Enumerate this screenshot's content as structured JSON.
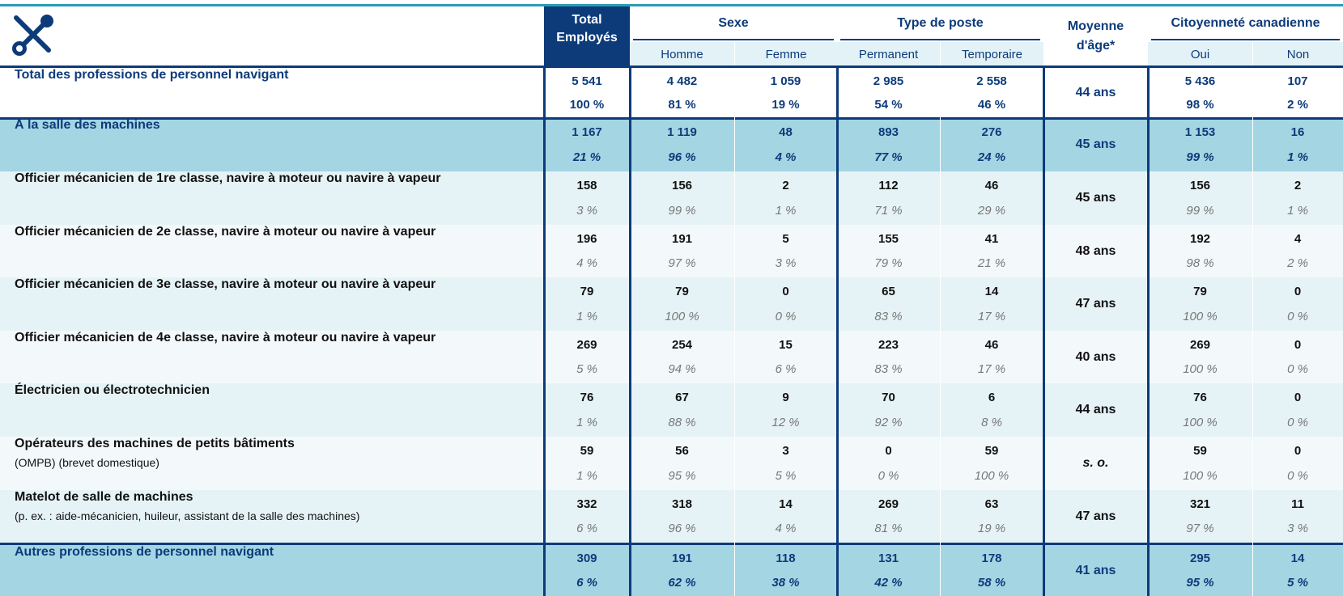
{
  "header": {
    "total": "Total Employés",
    "groups": [
      {
        "title": "Sexe",
        "subs": [
          "Homme",
          "Femme"
        ]
      },
      {
        "title": "Type de poste",
        "subs": [
          "Permanent",
          "Temporaire"
        ]
      },
      {
        "title": "Citoyenneté canadienne",
        "subs": [
          "Oui",
          "Non"
        ]
      }
    ],
    "age": "Moyenne d'âge*"
  },
  "table": {
    "rows": [
      {
        "style": "total",
        "label": "Total des professions de personnel navigant",
        "counts": [
          "5 541",
          "4 482",
          "1 059",
          "2 985",
          "2 558",
          "5 436",
          "107"
        ],
        "pcts": [
          "100 %",
          "81 %",
          "19 %",
          "54 %",
          "46 %",
          "98 %",
          "2 %"
        ],
        "age": "44 ans"
      },
      {
        "style": "section",
        "label": "À la salle des machines",
        "counts": [
          "1 167",
          "1 119",
          "48",
          "893",
          "276",
          "1 153",
          "16"
        ],
        "pcts": [
          "21 %",
          "96 %",
          "4 %",
          "77 %",
          "24 %",
          "99 %",
          "1 %"
        ],
        "age": "45 ans"
      },
      {
        "style": "detail",
        "label": "Officier mécanicien de 1re classe, navire à moteur ou navire à vapeur",
        "counts": [
          "158",
          "156",
          "2",
          "112",
          "46",
          "156",
          "2"
        ],
        "pcts": [
          "3 %",
          "99 %",
          "1 %",
          "71 %",
          "29 %",
          "99 %",
          "1 %"
        ],
        "age": "45 ans"
      },
      {
        "style": "detail",
        "label": "Officier mécanicien de 2e classe, navire à moteur ou navire à vapeur",
        "counts": [
          "196",
          "191",
          "5",
          "155",
          "41",
          "192",
          "4"
        ],
        "pcts": [
          "4 %",
          "97 %",
          "3 %",
          "79 %",
          "21 %",
          "98 %",
          "2 %"
        ],
        "age": "48 ans"
      },
      {
        "style": "detail",
        "label": "Officier mécanicien de 3e classe, navire à moteur ou navire à vapeur",
        "counts": [
          "79",
          "79",
          "0",
          "65",
          "14",
          "79",
          "0"
        ],
        "pcts": [
          "1 %",
          "100 %",
          "0 %",
          "83 %",
          "17 %",
          "100 %",
          "0 %"
        ],
        "age": "47 ans"
      },
      {
        "style": "detail",
        "label": "Officier mécanicien de 4e classe, navire à moteur ou navire à vapeur",
        "counts": [
          "269",
          "254",
          "15",
          "223",
          "46",
          "269",
          "0"
        ],
        "pcts": [
          "5 %",
          "94 %",
          "6 %",
          "83 %",
          "17 %",
          "100 %",
          "0 %"
        ],
        "age": "40 ans"
      },
      {
        "style": "detail",
        "label": "Électricien ou électrotechnicien",
        "counts": [
          "76",
          "67",
          "9",
          "70",
          "6",
          "76",
          "0"
        ],
        "pcts": [
          "1 %",
          "88 %",
          "12 %",
          "92 %",
          "8 %",
          "100 %",
          "0 %"
        ],
        "age": "44 ans"
      },
      {
        "style": "detail",
        "label": "Opérateurs des machines de petits bâtiments",
        "sublabel": "(OMPB) (brevet domestique)",
        "counts": [
          "59",
          "56",
          "3",
          "0",
          "59",
          "59",
          "0"
        ],
        "pcts": [
          "1 %",
          "95 %",
          "5 %",
          "0 %",
          "100 %",
          "100 %",
          "0 %"
        ],
        "age": "s. o."
      },
      {
        "style": "detail",
        "label": "Matelot de salle de machines",
        "sublabel": "(p. ex. : aide-mécanicien, huileur, assistant de la salle des machines)",
        "counts": [
          "332",
          "318",
          "14",
          "269",
          "63",
          "321",
          "11"
        ],
        "pcts": [
          "6 %",
          "96 %",
          "4 %",
          "81 %",
          "19 %",
          "97 %",
          "3 %"
        ],
        "age": "47 ans"
      },
      {
        "style": "section",
        "label": "Autres professions de personnel navigant",
        "counts": [
          "309",
          "191",
          "118",
          "131",
          "178",
          "295",
          "14"
        ],
        "pcts": [
          "6 %",
          "62 %",
          "38 %",
          "42 %",
          "58 %",
          "95 %",
          "5 %"
        ],
        "age": "41 ans"
      }
    ]
  }
}
